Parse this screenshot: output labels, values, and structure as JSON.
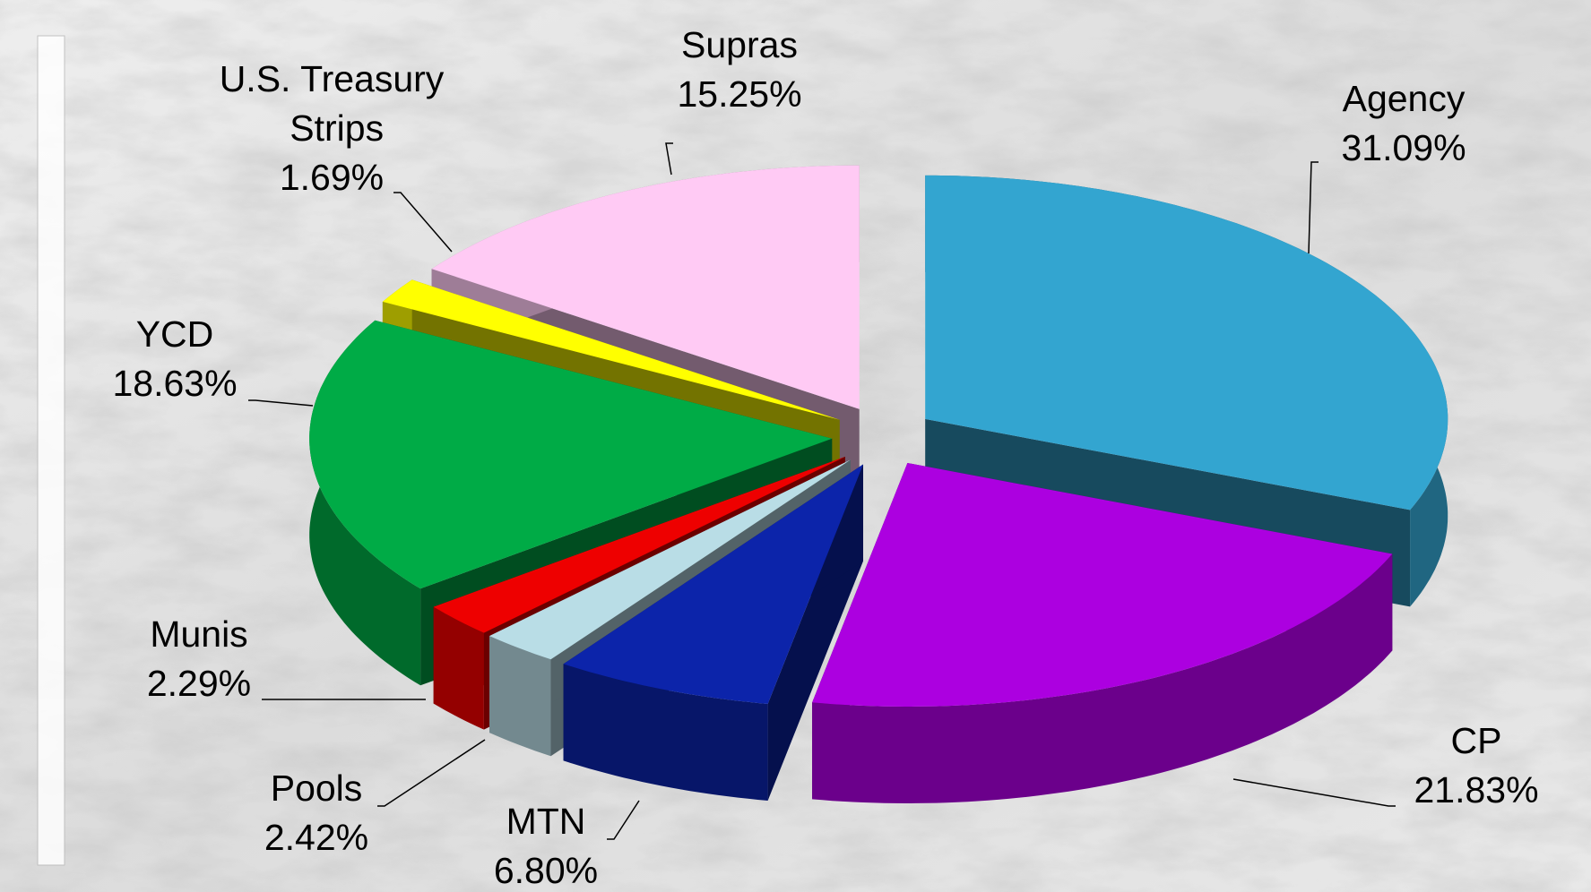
{
  "chart_data": {
    "type": "pie3d",
    "categories": [
      "Agency",
      "CP",
      "MTN",
      "Pools",
      "Munis",
      "YCD",
      "U.S. Treasury Strips",
      "Supras"
    ],
    "values": [
      31.09,
      21.83,
      6.8,
      2.42,
      2.29,
      18.63,
      1.69,
      15.25
    ],
    "value_labels": [
      "31.09%",
      "21.83%",
      "6.80%",
      "2.42%",
      "2.29%",
      "18.63%",
      "1.69%",
      "15.25%"
    ],
    "colors": [
      "#33a5d0",
      "#ac00e0",
      "#0c24aa",
      "#b9dde6",
      "#ee0000",
      "#00ab46",
      "#ffff00",
      "#ffcaf4"
    ]
  }
}
